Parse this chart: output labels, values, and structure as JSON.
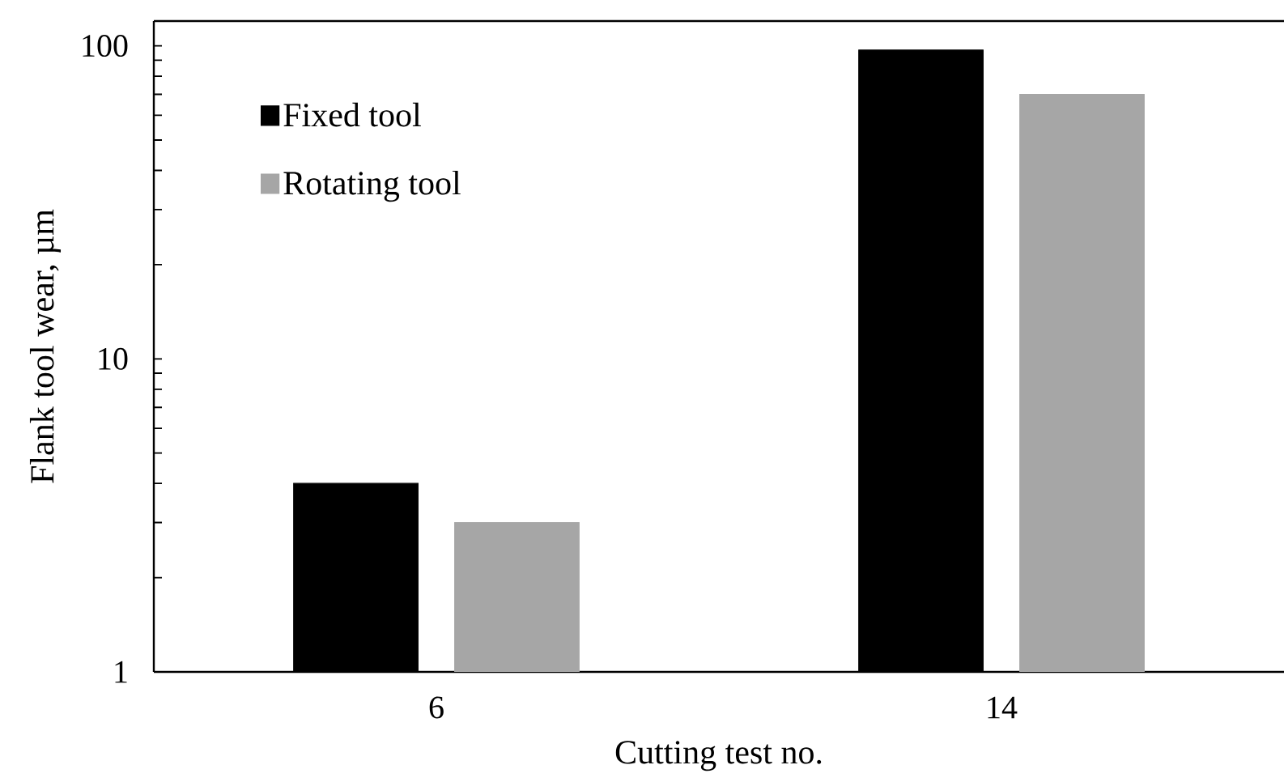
{
  "chart_data": {
    "type": "bar",
    "xlabel": "Cutting test no.",
    "ylabel": "Flank tool wear, µm",
    "categories": [
      "6",
      "14"
    ],
    "series": [
      {
        "name": "Fixed tool",
        "color": "#000000",
        "values": [
          4,
          97
        ]
      },
      {
        "name": "Rotating tool",
        "color": "#a6a6a6",
        "values": [
          3,
          70
        ]
      }
    ],
    "log": "y",
    "ylim": [
      1,
      120
    ],
    "yticks": [
      1,
      10,
      100
    ],
    "legend": "top left"
  }
}
